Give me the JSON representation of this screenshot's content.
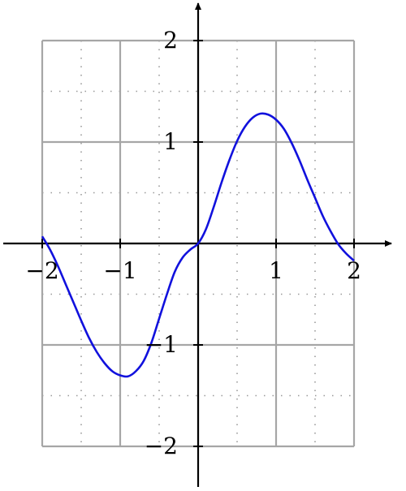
{
  "chart_data": {
    "type": "line",
    "title": "",
    "xlabel": "",
    "ylabel": "",
    "xlim": [
      -2.0,
      2.0
    ],
    "ylim": [
      -2.0,
      2.0
    ],
    "x_ticks": [
      -2,
      -1,
      1,
      2
    ],
    "y_ticks": [
      -2,
      -1,
      1,
      2
    ],
    "x_tick_labels": [
      "−2",
      "−1",
      "1",
      "2"
    ],
    "y_tick_labels": [
      "−2",
      "−1",
      "1",
      "2"
    ],
    "major_grid": true,
    "minor_grid": true,
    "minor_grid_style": "dotted",
    "series": [
      {
        "color": "#1111dd",
        "x": [
          -2.0,
          -1.9,
          -1.8,
          -1.7,
          -1.6,
          -1.5,
          -1.4,
          -1.3,
          -1.2,
          -1.1,
          -1.0,
          -0.9,
          -0.8,
          -0.7,
          -0.6,
          -0.5,
          -0.4,
          -0.3,
          -0.2,
          -0.1,
          0.0,
          0.1,
          0.2,
          0.3,
          0.4,
          0.5,
          0.6,
          0.7,
          0.8,
          0.9,
          1.0,
          1.1,
          1.2,
          1.3,
          1.4,
          1.5,
          1.6,
          1.7,
          1.8,
          1.9,
          2.0
        ],
        "y": [
          0.07,
          -0.06,
          -0.22,
          -0.4,
          -0.58,
          -0.76,
          -0.93,
          -1.07,
          -1.18,
          -1.26,
          -1.3,
          -1.31,
          -1.26,
          -1.16,
          -0.98,
          -0.74,
          -0.5,
          -0.28,
          -0.14,
          -0.06,
          0.0,
          0.14,
          0.36,
          0.6,
          0.82,
          1.01,
          1.15,
          1.24,
          1.28,
          1.27,
          1.22,
          1.13,
          0.99,
          0.82,
          0.63,
          0.45,
          0.27,
          0.12,
          -0.01,
          -0.1,
          -0.17
        ]
      }
    ]
  }
}
